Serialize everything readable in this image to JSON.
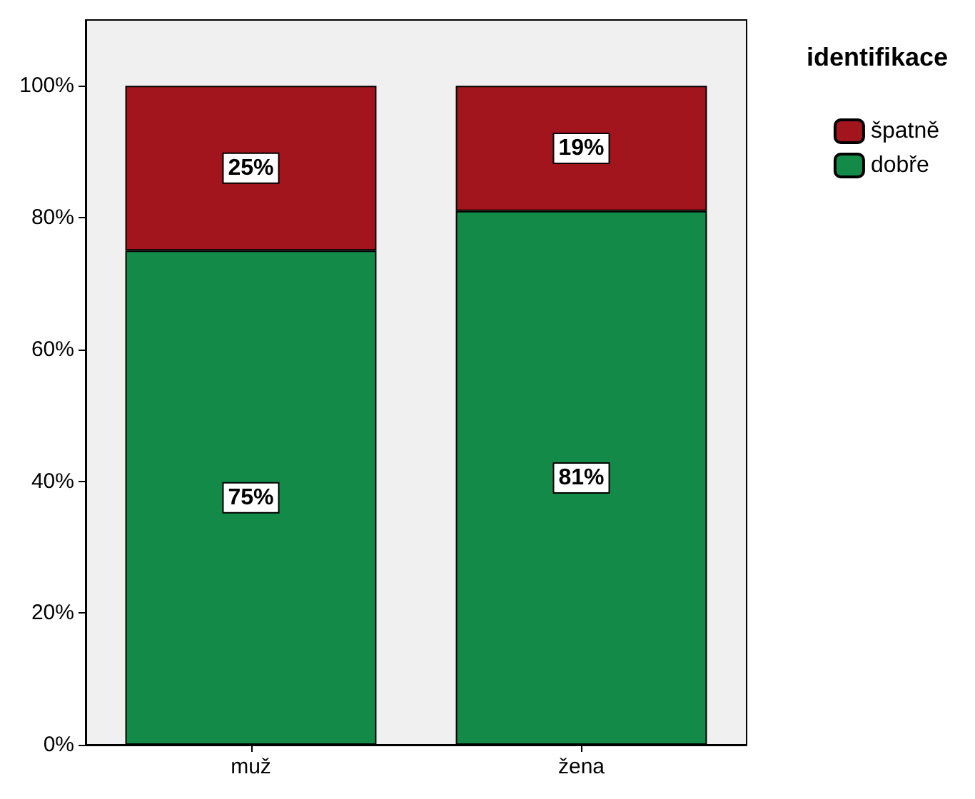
{
  "chart_data": {
    "type": "bar",
    "stacked": true,
    "legend_title": "identifikace",
    "categories": [
      "muž",
      "žena"
    ],
    "series": [
      {
        "name": "dobře",
        "color": "#138a48",
        "values": [
          75,
          81
        ],
        "value_labels": [
          "75%",
          "81%"
        ]
      },
      {
        "name": "špatně",
        "color": "#a3151d",
        "values": [
          25,
          19
        ],
        "value_labels": [
          "25%",
          "19%"
        ]
      }
    ],
    "ylim": [
      0,
      110
    ],
    "yticks": [
      {
        "value": 0,
        "label": "0%"
      },
      {
        "value": 20,
        "label": "20%"
      },
      {
        "value": 40,
        "label": "40%"
      },
      {
        "value": 60,
        "label": "60%"
      },
      {
        "value": 80,
        "label": "80%"
      },
      {
        "value": 100,
        "label": "100%"
      }
    ],
    "grid": false,
    "legend": "top right"
  }
}
